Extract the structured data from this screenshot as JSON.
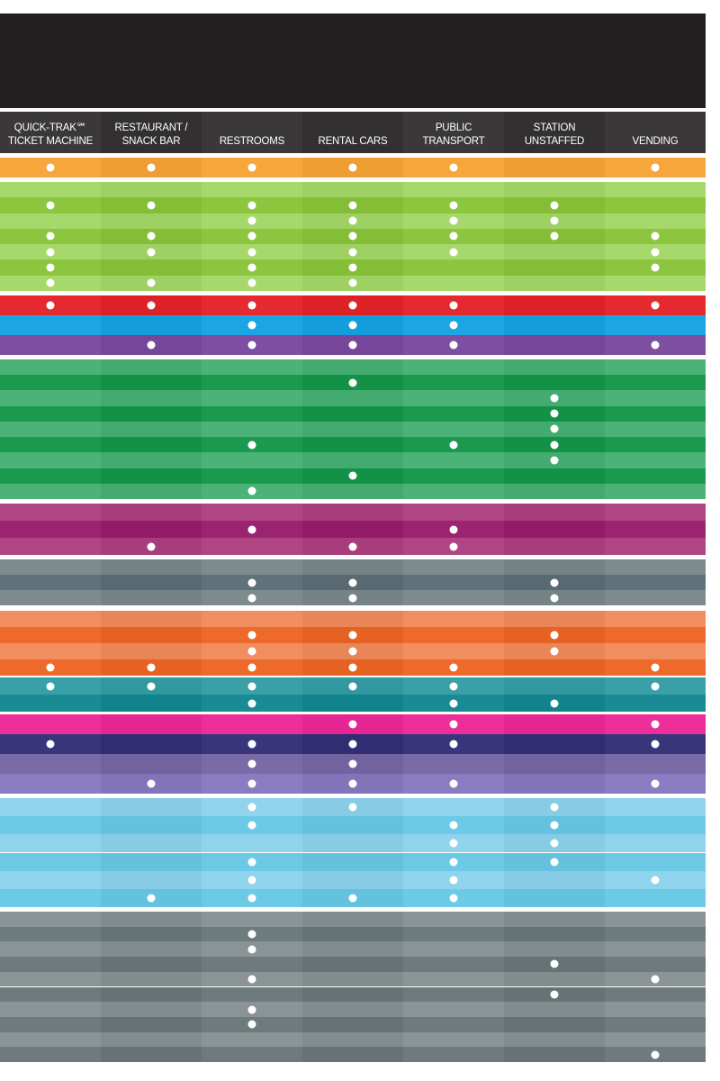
{
  "header": {
    "columns": [
      {
        "label": "QUICK-TRAK℠\nTICKET MACHINE"
      },
      {
        "label": "RESTAURANT /\nSNACK BAR"
      },
      {
        "label": "RESTROOMS"
      },
      {
        "label": "RENTAL CARS"
      },
      {
        "label": "PUBLIC TRANSPORT"
      },
      {
        "label": "STATION\nUNSTAFFED"
      },
      {
        "label": "VENDING"
      }
    ]
  },
  "palette": {
    "header_bg": "#231f20",
    "header_col_bg": [
      "#3b3839",
      "#333031",
      "#3b3839",
      "#333031",
      "#3b3839",
      "#333031",
      "#3b3839"
    ]
  },
  "groups": [
    {
      "name": "orange-light",
      "colors": [
        "#f7a63c",
        "#f4a12c"
      ],
      "rows": [
        [
          1,
          1,
          1,
          1,
          1,
          0,
          1
        ]
      ]
    },
    {
      "name": "lime-green",
      "colors": [
        "#a6d86c",
        "#8cc63f"
      ],
      "rows": [
        [
          0,
          0,
          0,
          0,
          0,
          0,
          0
        ],
        [
          1,
          1,
          1,
          1,
          1,
          1,
          0
        ],
        [
          0,
          0,
          1,
          1,
          1,
          1,
          0
        ],
        [
          1,
          1,
          1,
          1,
          1,
          1,
          1
        ],
        [
          1,
          1,
          1,
          1,
          1,
          0,
          1
        ],
        [
          1,
          0,
          1,
          1,
          0,
          0,
          1
        ],
        [
          1,
          1,
          1,
          1,
          0,
          0,
          0
        ]
      ]
    },
    {
      "name": "red",
      "colors": [
        "#e42a2e",
        "#ed1c24"
      ],
      "rows": [
        [
          1,
          1,
          1,
          1,
          1,
          0,
          1
        ]
      ]
    },
    {
      "name": "sky-blue",
      "colors": [
        "#1ba5e4",
        "#0aa0e0"
      ],
      "rows": [
        [
          0,
          0,
          1,
          1,
          1,
          0,
          0
        ]
      ]
    },
    {
      "name": "purple",
      "colors": [
        "#7d4ea1",
        "#6d3b95"
      ],
      "rows": [
        [
          0,
          1,
          1,
          1,
          1,
          0,
          1
        ]
      ]
    },
    {
      "name": "green",
      "colors": [
        "#4bb377",
        "#1b9a4f"
      ],
      "rows": [
        [
          0,
          0,
          0,
          0,
          0,
          0,
          0
        ],
        [
          0,
          0,
          0,
          1,
          0,
          0,
          0
        ],
        [
          0,
          0,
          0,
          0,
          0,
          1,
          0
        ],
        [
          0,
          0,
          0,
          0,
          0,
          1,
          0
        ],
        [
          0,
          0,
          0,
          0,
          0,
          1,
          0
        ],
        [
          0,
          0,
          1,
          0,
          1,
          1,
          0
        ],
        [
          0,
          0,
          0,
          0,
          0,
          1,
          0
        ],
        [
          0,
          0,
          0,
          1,
          0,
          0,
          0
        ],
        [
          0,
          0,
          1,
          0,
          0,
          0,
          0
        ]
      ]
    },
    {
      "name": "magenta-dark",
      "colors": [
        "#b04583",
        "#9b2372"
      ],
      "rows": [
        [
          0,
          0,
          0,
          0,
          0,
          0,
          0
        ],
        [
          0,
          0,
          1,
          0,
          1,
          0,
          0
        ],
        [
          0,
          1,
          0,
          1,
          1,
          0,
          0
        ]
      ]
    },
    {
      "name": "slate",
      "colors": [
        "#7d8b8e",
        "#60717a"
      ],
      "rows": [
        [
          0,
          0,
          0,
          0,
          0,
          0,
          0
        ],
        [
          0,
          0,
          1,
          1,
          0,
          1,
          0
        ],
        [
          0,
          0,
          1,
          1,
          0,
          1,
          0
        ]
      ]
    },
    {
      "name": "orange",
      "colors": [
        "#f28d61",
        "#ee6a2a"
      ],
      "rows": [
        [
          0,
          0,
          0,
          0,
          0,
          0,
          0
        ],
        [
          0,
          0,
          1,
          1,
          0,
          1,
          0
        ],
        [
          0,
          0,
          1,
          1,
          0,
          1,
          0
        ],
        [
          1,
          1,
          1,
          1,
          1,
          0,
          1
        ]
      ]
    },
    {
      "name": "teal",
      "colors": [
        "#3aa0a8",
        "#1a8a94"
      ],
      "rows": [
        [
          1,
          1,
          1,
          1,
          1,
          0,
          1
        ],
        [
          0,
          0,
          1,
          0,
          1,
          1,
          0
        ]
      ]
    },
    {
      "name": "hot-pink",
      "colors": [
        "#ec2d9a",
        "#e6068b"
      ],
      "rows": [
        [
          0,
          0,
          0,
          1,
          1,
          0,
          1
        ]
      ]
    },
    {
      "name": "navy",
      "colors": [
        "#38357a",
        "#2b2668"
      ],
      "rows": [
        [
          1,
          0,
          1,
          1,
          1,
          0,
          1
        ]
      ]
    },
    {
      "name": "lavender",
      "colors": [
        "#7a6aa8",
        "#8a7cc0"
      ],
      "rows": [
        [
          0,
          0,
          1,
          1,
          0,
          0,
          0
        ],
        [
          0,
          1,
          1,
          1,
          1,
          0,
          1
        ]
      ]
    },
    {
      "name": "light-blue",
      "colors": [
        "#8fd3ec",
        "#6ccae6"
      ],
      "rows": [
        [
          0,
          0,
          1,
          1,
          0,
          1,
          0
        ],
        [
          0,
          0,
          1,
          0,
          1,
          1,
          0
        ],
        [
          0,
          0,
          0,
          0,
          1,
          1,
          0
        ],
        [
          0,
          0,
          1,
          0,
          1,
          1,
          0
        ],
        [
          0,
          0,
          1,
          0,
          1,
          0,
          1
        ],
        [
          0,
          1,
          1,
          1,
          1,
          0,
          0
        ]
      ]
    },
    {
      "name": "gray",
      "colors": [
        "#8a9496",
        "#6e7b7d"
      ],
      "rows": [
        [
          0,
          0,
          0,
          0,
          0,
          0,
          0
        ],
        [
          0,
          0,
          1,
          0,
          0,
          0,
          0
        ],
        [
          0,
          0,
          1,
          0,
          0,
          0,
          0
        ],
        [
          0,
          0,
          0,
          0,
          0,
          1,
          0
        ],
        [
          0,
          0,
          1,
          0,
          0,
          0,
          1
        ],
        [
          0,
          0,
          0,
          0,
          0,
          1,
          0
        ],
        [
          0,
          0,
          1,
          0,
          0,
          0,
          0
        ],
        [
          0,
          0,
          1,
          0,
          0,
          0,
          0
        ],
        [
          0,
          0,
          0,
          0,
          0,
          0,
          0
        ],
        [
          0,
          0,
          0,
          0,
          0,
          0,
          1
        ]
      ]
    }
  ]
}
